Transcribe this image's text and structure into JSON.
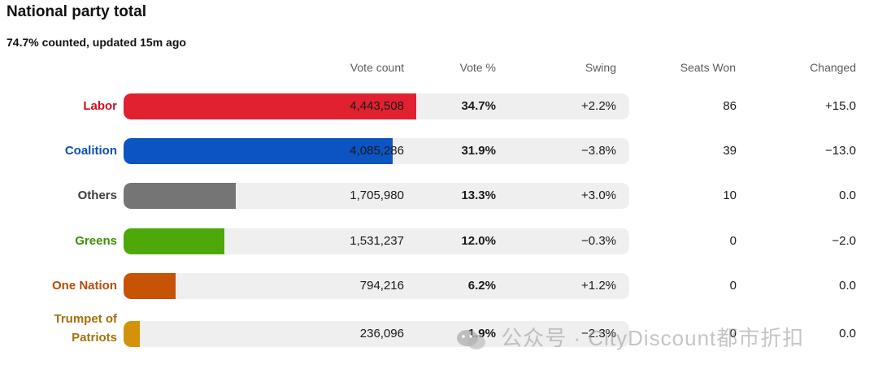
{
  "title": "National party total",
  "subtitle": "74.7% counted, updated 15m ago",
  "headers": {
    "votes": "Vote count",
    "pct": "Vote %",
    "swing": "Swing",
    "seats": "Seats Won",
    "changed": "Changed"
  },
  "chart_data": {
    "type": "bar",
    "title": "National party total",
    "categories": [
      "Labor",
      "Coalition",
      "Others",
      "Greens",
      "One Nation",
      "Trumpet of Patriots"
    ],
    "series": [
      {
        "values": [
          34.7,
          31.9,
          13.3,
          12.0,
          6.2,
          1.9
        ]
      }
    ],
    "rows": [
      {
        "party": "Labor",
        "color": "#e1212f",
        "votes": "4,443,508",
        "pct": "34.7%",
        "pct_value": 34.7,
        "swing": "+2.2%",
        "seats": "86",
        "changed": "+15.0"
      },
      {
        "party": "Coalition",
        "color": "#0b54c2",
        "votes": "4,085,286",
        "pct": "31.9%",
        "pct_value": 31.9,
        "swing": "−3.8%",
        "seats": "39",
        "changed": "−13.0"
      },
      {
        "party": "Others",
        "color": "#757575",
        "votes": "1,705,980",
        "pct": "13.3%",
        "pct_value": 13.3,
        "swing": "+3.0%",
        "seats": "10",
        "changed": "0.0"
      },
      {
        "party": "Greens",
        "color": "#4ea80a",
        "votes": "1,531,237",
        "pct": "12.0%",
        "pct_value": 12.0,
        "swing": "−0.3%",
        "seats": "0",
        "changed": "−2.0"
      },
      {
        "party": "One Nation",
        "color": "#c75305",
        "votes": "794,216",
        "pct": "6.2%",
        "pct_value": 6.2,
        "swing": "+1.2%",
        "seats": "0",
        "changed": "0.0"
      },
      {
        "party": "Trumpet of Patriots",
        "color": "#d4920a",
        "votes": "236,096",
        "pct": "1.9%",
        "pct_value": 1.9,
        "swing": "−2.3%",
        "seats": "0",
        "changed": "0.0"
      }
    ],
    "label_colors": [
      "#d0121f",
      "#0b4fb8",
      "#3d3d3d",
      "#3f8f06",
      "#bb4a04",
      "#a5700b"
    ],
    "ylim": [
      0,
      60
    ],
    "grid": false,
    "legend": "none"
  },
  "watermark": {
    "text": "公众号 · CityDiscount都市折扣",
    "icon": "wechat-icon"
  }
}
